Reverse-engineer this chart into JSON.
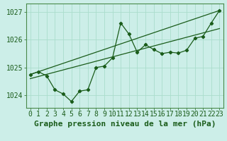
{
  "background_color": "#cceee8",
  "grid_color": "#aaddcc",
  "line_color": "#1a5c1a",
  "marker_color": "#1a5c1a",
  "xlabel": "Graphe pression niveau de la mer (hPa)",
  "xlabel_fontsize": 8,
  "ylim": [
    1023.55,
    1027.3
  ],
  "xlim": [
    -0.5,
    23.5
  ],
  "yticks": [
    1024,
    1025,
    1026,
    1027
  ],
  "xticks": [
    0,
    1,
    2,
    3,
    4,
    5,
    6,
    7,
    8,
    9,
    10,
    11,
    12,
    13,
    14,
    15,
    16,
    17,
    18,
    19,
    20,
    21,
    22,
    23
  ],
  "series1_x": [
    0,
    1,
    2,
    3,
    4,
    5,
    6,
    7,
    8,
    9,
    10,
    11,
    12,
    13,
    14,
    15,
    16,
    17,
    18,
    19,
    20,
    21,
    22,
    23
  ],
  "series1_y": [
    1024.75,
    1024.85,
    1024.7,
    1024.2,
    1024.05,
    1023.78,
    1024.15,
    1024.2,
    1025.0,
    1025.05,
    1025.35,
    1026.6,
    1026.2,
    1025.55,
    1025.82,
    1025.65,
    1025.5,
    1025.55,
    1025.52,
    1025.62,
    1026.05,
    1026.12,
    1026.6,
    1027.05
  ],
  "trend1_x": [
    0,
    23
  ],
  "trend1_y": [
    1024.75,
    1027.05
  ],
  "trend2_x": [
    0,
    23
  ],
  "trend2_y": [
    1024.6,
    1026.4
  ],
  "tick_fontsize": 7,
  "tick_color": "#1a5c1a",
  "spine_color": "#4a8a4a"
}
